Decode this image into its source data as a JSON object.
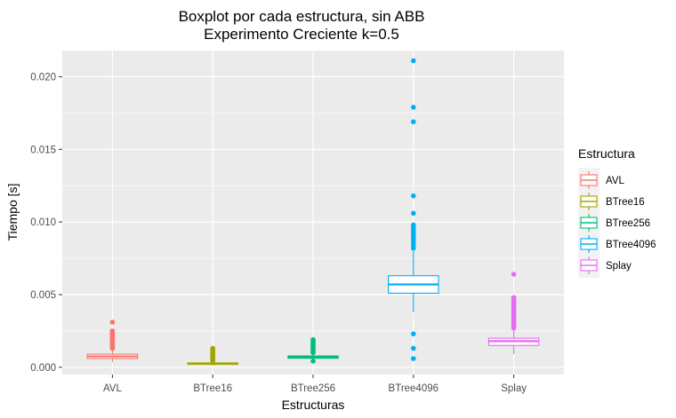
{
  "chart_data": {
    "type": "boxplot",
    "title": "Boxplot por cada estructura, sin ABB",
    "subtitle": "Experimento Creciente k=0.5",
    "xlabel": "Estructuras",
    "ylabel": "Tiempo [s]",
    "ylim": [
      -0.0005,
      0.0218
    ],
    "yticks": [
      0.0,
      0.005,
      0.01,
      0.015,
      0.02
    ],
    "ytick_labels": [
      "0.000",
      "0.005",
      "0.010",
      "0.015",
      "0.020"
    ],
    "grid": true,
    "legend_title": "Estructura",
    "legend_position": "right",
    "categories": [
      "AVL",
      "BTree16",
      "BTree256",
      "BTree4096",
      "Splay"
    ],
    "series": [
      {
        "name": "AVL",
        "color": "#F8766D",
        "whisker_low": 0.00035,
        "q1": 0.0006,
        "median": 0.00075,
        "q3": 0.0009,
        "whisker_high": 0.00125,
        "outliers": [
          0.0013,
          0.00138,
          0.00145,
          0.00152,
          0.0016,
          0.00168,
          0.00175,
          0.00183,
          0.0019,
          0.002,
          0.0021,
          0.0022,
          0.0023,
          0.0024,
          0.0025,
          0.0031
        ]
      },
      {
        "name": "BTree16",
        "color": "#A3A500",
        "whisker_low": 0.00012,
        "q1": 0.0002,
        "median": 0.00025,
        "q3": 0.0003,
        "whisker_high": 0.00042,
        "outliers": [
          0.00045,
          0.0005,
          0.00055,
          0.0006,
          0.00065,
          0.0007,
          0.0008,
          0.0009,
          0.001,
          0.0011,
          0.0012,
          0.0013
        ]
      },
      {
        "name": "BTree256",
        "color": "#00BF7D",
        "whisker_low": 0.00045,
        "q1": 0.00062,
        "median": 0.0007,
        "q3": 0.00078,
        "whisker_high": 0.00095,
        "outliers": [
          0.00042,
          0.001,
          0.00108,
          0.00115,
          0.00125,
          0.00135,
          0.00145,
          0.00155,
          0.00165,
          0.00175,
          0.00185,
          0.0019
        ]
      },
      {
        "name": "BTree4096",
        "color": "#00B0F6",
        "whisker_low": 0.0038,
        "q1": 0.0051,
        "median": 0.0057,
        "q3": 0.0063,
        "whisker_high": 0.0081,
        "outliers": [
          0.0006,
          0.0013,
          0.0023,
          0.0082,
          0.0084,
          0.0086,
          0.0088,
          0.009,
          0.0092,
          0.0094,
          0.0096,
          0.0098,
          0.0106,
          0.0118,
          0.0169,
          0.0179,
          0.0211
        ]
      },
      {
        "name": "Splay",
        "color": "#E76BF3",
        "whisker_low": 0.0009,
        "q1": 0.0015,
        "median": 0.0018,
        "q3": 0.002,
        "whisker_high": 0.0026,
        "outliers": [
          0.0027,
          0.0028,
          0.0029,
          0.003,
          0.0031,
          0.0032,
          0.0033,
          0.0034,
          0.0035,
          0.0036,
          0.0037,
          0.0038,
          0.0039,
          0.004,
          0.0041,
          0.0042,
          0.0043,
          0.0044,
          0.0045,
          0.0046,
          0.0047,
          0.0048,
          0.0064
        ]
      }
    ]
  }
}
